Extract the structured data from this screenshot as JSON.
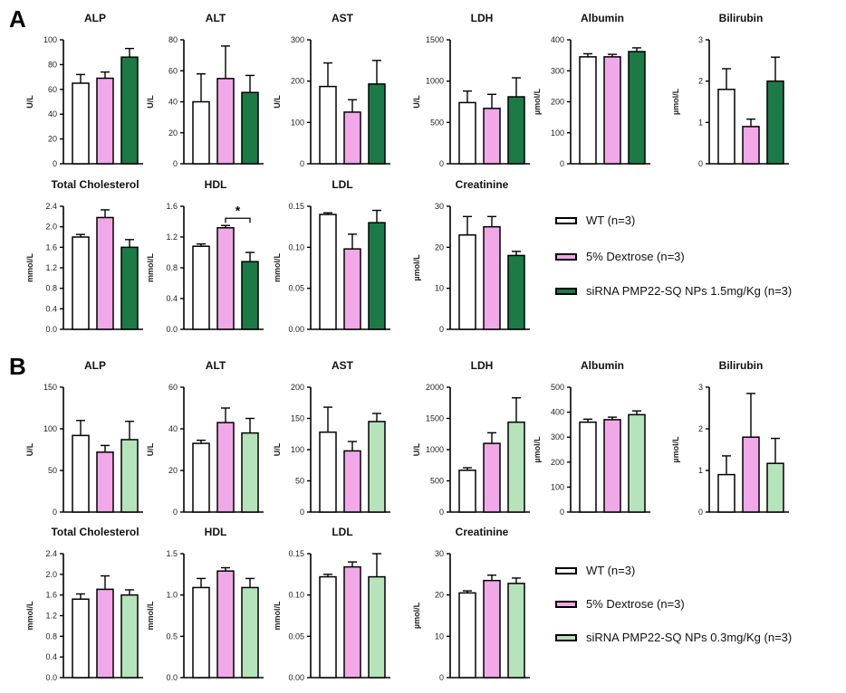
{
  "panels": [
    {
      "letter": "A",
      "colors": [
        "#ffffff",
        "#f0a8e8",
        "#1b7a46"
      ],
      "legend": [
        "WT (n=3)",
        "5% Dextrose (n=3)",
        "siRNA PMP22-SQ NPs 1.5mg/Kg (n=3)"
      ]
    },
    {
      "letter": "B",
      "colors": [
        "#ffffff",
        "#f0a8e8",
        "#b5e3ba"
      ],
      "legend": [
        "WT (n=3)",
        "5% Dextrose (n=3)",
        "siRNA PMP22-SQ NPs 0.3mg/Kg (n=3)"
      ]
    }
  ],
  "chart_data": [
    {
      "panel": "A",
      "type": "bar",
      "title": "ALP",
      "ylabel": "U/L",
      "ylim": [
        0,
        100
      ],
      "ticks": [
        "0",
        "20",
        "40",
        "60",
        "80",
        "100"
      ],
      "categories": [
        "WT",
        "5% Dextrose",
        "siRNA PMP22-SQ NPs 1.5mg/Kg"
      ],
      "values": [
        65,
        69,
        86
      ],
      "errors": [
        7,
        5,
        7
      ]
    },
    {
      "panel": "A",
      "type": "bar",
      "title": "ALT",
      "ylabel": "U/L",
      "ylim": [
        0,
        80
      ],
      "ticks": [
        "0",
        "20",
        "40",
        "60",
        "80"
      ],
      "categories": [
        "WT",
        "5% Dextrose",
        "siRNA PMP22-SQ NPs 1.5mg/Kg"
      ],
      "values": [
        40,
        55,
        46
      ],
      "errors": [
        18,
        21,
        11
      ]
    },
    {
      "panel": "A",
      "type": "bar",
      "title": "AST",
      "ylabel": "U/L",
      "ylim": [
        0,
        300
      ],
      "ticks": [
        "0",
        "100",
        "200",
        "300"
      ],
      "categories": [
        "WT",
        "5% Dextrose",
        "siRNA PMP22-SQ NPs 1.5mg/Kg"
      ],
      "values": [
        187,
        125,
        193
      ],
      "errors": [
        57,
        30,
        57
      ]
    },
    {
      "panel": "A",
      "type": "bar",
      "title": "LDH",
      "ylabel": "U/L",
      "ylim": [
        0,
        1500
      ],
      "ticks": [
        "0",
        "500",
        "1000",
        "1500"
      ],
      "categories": [
        "WT",
        "5% Dextrose",
        "siRNA PMP22-SQ NPs 1.5mg/Kg"
      ],
      "values": [
        740,
        670,
        810
      ],
      "errors": [
        140,
        170,
        230
      ]
    },
    {
      "panel": "A",
      "type": "bar",
      "title": "Albumin",
      "ylabel": "µmol/L",
      "ylim": [
        0,
        400
      ],
      "ticks": [
        "0",
        "100",
        "200",
        "300",
        "400"
      ],
      "categories": [
        "WT",
        "5% Dextrose",
        "siRNA PMP22-SQ NPs 1.5mg/Kg"
      ],
      "values": [
        345,
        345,
        362
      ],
      "errors": [
        10,
        8,
        12
      ]
    },
    {
      "panel": "A",
      "type": "bar",
      "title": "Bilirubin",
      "ylabel": "µmol/L",
      "ylim": [
        0,
        3
      ],
      "ticks": [
        "0",
        "1",
        "2",
        "3"
      ],
      "categories": [
        "WT",
        "5% Dextrose",
        "siRNA PMP22-SQ NPs 1.5mg/Kg"
      ],
      "values": [
        1.8,
        0.9,
        2.0
      ],
      "errors": [
        0.5,
        0.18,
        0.58
      ]
    },
    {
      "panel": "A",
      "type": "bar",
      "title": "Total Cholesterol",
      "ylabel": "mmol/L",
      "ylim": [
        0,
        2.4
      ],
      "ticks": [
        "0.0",
        "0.4",
        "0.8",
        "1.2",
        "1.6",
        "2.0",
        "2.4"
      ],
      "categories": [
        "WT",
        "5% Dextrose",
        "siRNA PMP22-SQ NPs 1.5mg/Kg"
      ],
      "values": [
        1.8,
        2.18,
        1.6
      ],
      "errors": [
        0.05,
        0.15,
        0.15
      ]
    },
    {
      "panel": "A",
      "type": "bar",
      "title": "HDL",
      "ylabel": "mmol/L",
      "ylim": [
        0,
        1.6
      ],
      "ticks": [
        "0.0",
        "0.4",
        "0.8",
        "1.2",
        "1.6"
      ],
      "categories": [
        "WT",
        "5% Dextrose",
        "siRNA PMP22-SQ NPs 1.5mg/Kg"
      ],
      "values": [
        1.08,
        1.32,
        0.88
      ],
      "errors": [
        0.03,
        0.03,
        0.12
      ],
      "significance": {
        "between": [
          1,
          2
        ],
        "label": "*"
      }
    },
    {
      "panel": "A",
      "type": "bar",
      "title": "LDL",
      "ylabel": "mmol/L",
      "ylim": [
        0,
        0.15
      ],
      "ticks": [
        "0.00",
        "0.05",
        "0.10",
        "0.15"
      ],
      "categories": [
        "WT",
        "5% Dextrose",
        "siRNA PMP22-SQ NPs 1.5mg/Kg"
      ],
      "values": [
        0.14,
        0.098,
        0.13
      ],
      "errors": [
        0.002,
        0.018,
        0.015
      ]
    },
    {
      "panel": "A",
      "type": "bar",
      "title": "Creatinine",
      "ylabel": "µmol/L",
      "ylim": [
        0,
        30
      ],
      "ticks": [
        "0",
        "10",
        "20",
        "30"
      ],
      "categories": [
        "WT",
        "5% Dextrose",
        "siRNA PMP22-SQ NPs 1.5mg/Kg"
      ],
      "values": [
        23,
        25,
        18
      ],
      "errors": [
        4.5,
        2.5,
        1
      ]
    },
    {
      "panel": "B",
      "type": "bar",
      "title": "ALP",
      "ylabel": "U/L",
      "ylim": [
        0,
        150
      ],
      "ticks": [
        "0",
        "50",
        "100",
        "150"
      ],
      "categories": [
        "WT",
        "5% Dextrose",
        "siRNA PMP22-SQ NPs 0.3mg/Kg"
      ],
      "values": [
        92,
        72,
        87
      ],
      "errors": [
        18,
        8,
        22
      ]
    },
    {
      "panel": "B",
      "type": "bar",
      "title": "ALT",
      "ylabel": "U/L",
      "ylim": [
        0,
        60
      ],
      "ticks": [
        "0",
        "20",
        "40",
        "60"
      ],
      "categories": [
        "WT",
        "5% Dextrose",
        "siRNA PMP22-SQ NPs 0.3mg/Kg"
      ],
      "values": [
        33,
        43,
        38
      ],
      "errors": [
        1.5,
        7,
        7
      ]
    },
    {
      "panel": "B",
      "type": "bar",
      "title": "AST",
      "ylabel": "U/L",
      "ylim": [
        0,
        200
      ],
      "ticks": [
        "0",
        "50",
        "100",
        "150",
        "200"
      ],
      "categories": [
        "WT",
        "5% Dextrose",
        "siRNA PMP22-SQ NPs 0.3mg/Kg"
      ],
      "values": [
        128,
        98,
        145
      ],
      "errors": [
        40,
        15,
        13
      ]
    },
    {
      "panel": "B",
      "type": "bar",
      "title": "LDH",
      "ylabel": "U/L",
      "ylim": [
        0,
        2000
      ],
      "ticks": [
        "0",
        "500",
        "1000",
        "1500",
        "2000"
      ],
      "categories": [
        "WT",
        "5% Dextrose",
        "siRNA PMP22-SQ NPs 0.3mg/Kg"
      ],
      "values": [
        670,
        1100,
        1440
      ],
      "errors": [
        40,
        170,
        390
      ]
    },
    {
      "panel": "B",
      "type": "bar",
      "title": "Albumin",
      "ylabel": "µmol/L",
      "ylim": [
        0,
        500
      ],
      "ticks": [
        "0",
        "100",
        "200",
        "300",
        "400",
        "500"
      ],
      "categories": [
        "WT",
        "5% Dextrose",
        "siRNA PMP22-SQ NPs 0.3mg/Kg"
      ],
      "values": [
        360,
        370,
        390
      ],
      "errors": [
        12,
        10,
        15
      ]
    },
    {
      "panel": "B",
      "type": "bar",
      "title": "Bilirubin",
      "ylabel": "µmol/L",
      "ylim": [
        0,
        3
      ],
      "ticks": [
        "0",
        "1",
        "2",
        "3"
      ],
      "categories": [
        "WT",
        "5% Dextrose",
        "siRNA PMP22-SQ NPs 0.3mg/Kg"
      ],
      "values": [
        0.9,
        1.8,
        1.17
      ],
      "errors": [
        0.45,
        1.05,
        0.6
      ]
    },
    {
      "panel": "B",
      "type": "bar",
      "title": "Total Cholesterol",
      "ylabel": "mmol/L",
      "ylim": [
        0,
        2.4
      ],
      "ticks": [
        "0.0",
        "0.4",
        "0.8",
        "1.2",
        "1.6",
        "2.0",
        "2.4"
      ],
      "categories": [
        "WT",
        "5% Dextrose",
        "siRNA PMP22-SQ NPs 0.3mg/Kg"
      ],
      "values": [
        1.52,
        1.71,
        1.6
      ],
      "errors": [
        0.1,
        0.26,
        0.1
      ]
    },
    {
      "panel": "B",
      "type": "bar",
      "title": "HDL",
      "ylabel": "mmol/L",
      "ylim": [
        0,
        1.5
      ],
      "ticks": [
        "0.0",
        "0.5",
        "1.0",
        "1.5"
      ],
      "categories": [
        "WT",
        "5% Dextrose",
        "siRNA PMP22-SQ NPs 0.3mg/Kg"
      ],
      "values": [
        1.09,
        1.29,
        1.09
      ],
      "errors": [
        0.11,
        0.04,
        0.11
      ]
    },
    {
      "panel": "B",
      "type": "bar",
      "title": "LDL",
      "ylabel": "mmol/L",
      "ylim": [
        0,
        0.15
      ],
      "ticks": [
        "0.00",
        "0.05",
        "0.10",
        "0.15"
      ],
      "categories": [
        "WT",
        "5% Dextrose",
        "siRNA PMP22-SQ NPs 0.3mg/Kg"
      ],
      "values": [
        0.122,
        0.134,
        0.122
      ],
      "errors": [
        0.003,
        0.006,
        0.028
      ]
    },
    {
      "panel": "B",
      "type": "bar",
      "title": "Creatinine",
      "ylabel": "µmol/L",
      "ylim": [
        0,
        30
      ],
      "ticks": [
        "0",
        "10",
        "20",
        "30"
      ],
      "categories": [
        "WT",
        "5% Dextrose",
        "siRNA PMP22-SQ NPs 0.3mg/Kg"
      ],
      "values": [
        20.5,
        23.5,
        22.8
      ],
      "errors": [
        0.5,
        1.3,
        1.3
      ]
    }
  ]
}
